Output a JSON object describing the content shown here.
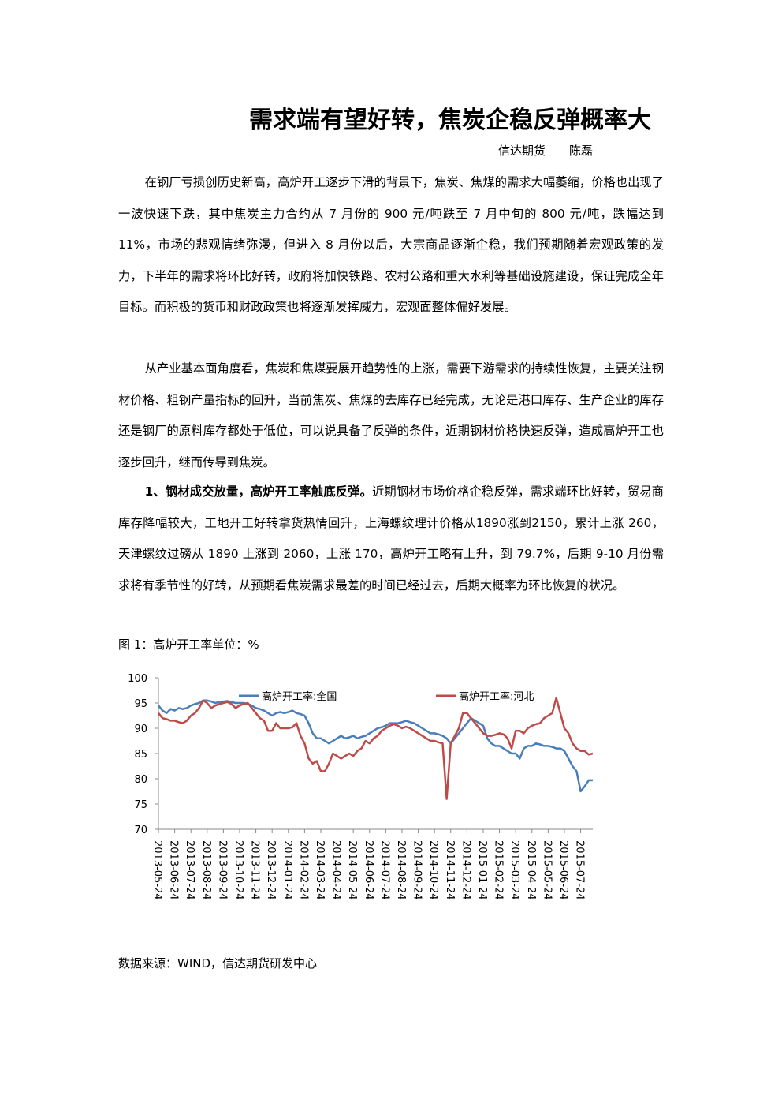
{
  "header": {
    "title": "需求端有望好转，焦炭企稳反弹概率大",
    "org": "信达期货",
    "author": "陈磊"
  },
  "paragraphs": [
    "在钢厂亏损创历史新高，高炉开工逐步下滑的背景下，焦炭、焦煤的需求大幅萎缩，价格也出现了一波快速下跌，其中焦炭主力合约从 7 月份的 900 元/吨跌至 7 月中旬的 800 元/吨，跌幅达到 11%，市场的悲观情绪弥漫，但进入 8 月份以后，大宗商品逐渐企稳，我们预期随着宏观政策的发力，下半年的需求将环比好转，政府将加快铁路、农村公路和重大水利等基础设施建设，保证完成全年目标。而积极的货币和财政政策也将逐渐发挥威力，宏观面整体偏好发展。",
    "从产业基本面角度看，焦炭和焦煤要展开趋势性的上涨，需要下游需求的持续性恢复，主要关注钢材价格、粗钢产量指标的回升，当前焦炭、焦煤的去库存已经完成，无论是港口库存、生产企业的库存还是钢厂的原料库存都处于低位，可以说具备了反弹的条件，近期钢材价格快速反弹，造成高炉开工也逐步回升，继而传导到焦炭。"
  ],
  "section": {
    "heading": "1、钢材成交放量，高炉开工率触底反弹。",
    "text": "近期钢材市场价格企稳反弹，需求端环比好转，贸易商库存降幅较大，工地开工好转拿货热情回升，上海螺纹理计价格从1890涨到2150，累计上涨 260，天津螺纹过磅从 1890 上涨到 2060，上涨 170，高炉开工略有上升，到 79.7%，后期 9-10 月份需求将有季节性的好转，从预期看焦炭需求最差的时间已经过去，后期大概率为环比恢复的状况。"
  },
  "figure_caption": "图 1：高炉开工率单位：%",
  "source": "数据来源：WIND，信达期货研发中心",
  "chart_data": {
    "type": "line",
    "legend": "top",
    "grid": false,
    "ylim": [
      70,
      100
    ],
    "yticks": [
      70,
      75,
      80,
      85,
      90,
      95,
      100
    ],
    "categories": [
      "2013-05-24",
      null,
      null,
      null,
      "2013-06-24",
      null,
      null,
      null,
      "2013-07-24",
      null,
      null,
      null,
      "2013-08-24",
      null,
      null,
      null,
      "2013-09-24",
      null,
      null,
      null,
      "2013-10-24",
      null,
      null,
      null,
      "2013-11-24",
      null,
      null,
      null,
      "2013-12-24",
      null,
      null,
      null,
      "2014-01-24",
      null,
      null,
      null,
      "2014-02-24",
      null,
      null,
      null,
      "2014-03-24",
      null,
      null,
      null,
      "2014-04-24",
      null,
      null,
      null,
      "2014-05-24",
      null,
      null,
      null,
      "2014-06-24",
      null,
      null,
      null,
      "2014-07-24",
      null,
      null,
      null,
      "2014-08-24",
      null,
      null,
      null,
      "2014-09-24",
      null,
      null,
      null,
      "2014-10-24",
      null,
      null,
      null,
      "2014-11-24",
      null,
      null,
      null,
      "2014-12-24",
      null,
      null,
      null,
      "2015-01-24",
      null,
      null,
      null,
      "2015-02-24",
      null,
      null,
      null,
      "2015-03-24",
      null,
      null,
      null,
      "2015-04-24",
      null,
      null,
      null,
      "2015-05-24",
      null,
      null,
      null,
      "2015-06-24",
      null,
      null,
      null,
      "2015-07-24",
      null,
      null,
      null
    ],
    "series": [
      {
        "name": "高炉开工率:全国",
        "color": "#4a7ebb",
        "values": [
          94.5,
          93.5,
          93,
          93.8,
          93.5,
          94,
          93.8,
          94,
          94.5,
          94.8,
          95,
          95.5,
          95.5,
          95.3,
          95,
          95.2,
          95.3,
          95.4,
          95.2,
          95,
          95,
          95,
          94.8,
          94.5,
          94,
          93.8,
          93.5,
          93,
          92.5,
          93,
          93.2,
          93,
          93.2,
          93.5,
          93,
          92.8,
          92.5,
          91,
          89,
          88,
          88,
          87.5,
          87,
          87.5,
          88,
          88.5,
          88,
          88.2,
          88.5,
          88,
          88.3,
          88.5,
          89,
          89.5,
          90,
          90.2,
          90.5,
          91,
          91,
          91,
          91.2,
          91.5,
          91.2,
          91,
          90.5,
          90,
          89.5,
          89,
          89,
          88.8,
          88.5,
          88,
          87,
          88,
          89,
          90,
          91,
          92,
          91.5,
          91,
          90.5,
          88,
          87,
          86.5,
          86.5,
          86,
          85.5,
          85,
          85,
          84,
          86,
          86.5,
          86.5,
          87,
          86.8,
          86.5,
          86.5,
          86.3,
          86,
          86,
          85.5,
          84,
          82.5,
          81.5,
          77.5,
          78.5,
          79.7,
          79.7
        ]
      },
      {
        "name": "高炉开工率:河北",
        "color": "#be4b48",
        "values": [
          93,
          92,
          91.8,
          91.5,
          91.5,
          91.2,
          91,
          91.5,
          92.5,
          93,
          94,
          95.5,
          95,
          94,
          94.5,
          94.8,
          95,
          95.2,
          94.8,
          94,
          94.5,
          94.8,
          95,
          94,
          93,
          92,
          91.5,
          89.5,
          89.5,
          91,
          90,
          90,
          90,
          90.2,
          91,
          88.5,
          87,
          84,
          83,
          83.5,
          81.5,
          81.5,
          83,
          85,
          84.5,
          84,
          84.5,
          85,
          84.5,
          85.5,
          86,
          87.5,
          87,
          88,
          88.5,
          89.5,
          90,
          90.5,
          90.8,
          90.5,
          90,
          90.3,
          90,
          89.5,
          89,
          88.5,
          88,
          87.5,
          87.5,
          87.2,
          87,
          76,
          87,
          88.5,
          90,
          93,
          93,
          92,
          91,
          90,
          89,
          88.5,
          88.5,
          88.7,
          89,
          88.8,
          88,
          86,
          89.5,
          89.5,
          89,
          90,
          90.5,
          90.8,
          91,
          92,
          92.5,
          93,
          96,
          93,
          90,
          89,
          87,
          86,
          85.5,
          85.5,
          84.8,
          85
        ]
      }
    ]
  }
}
